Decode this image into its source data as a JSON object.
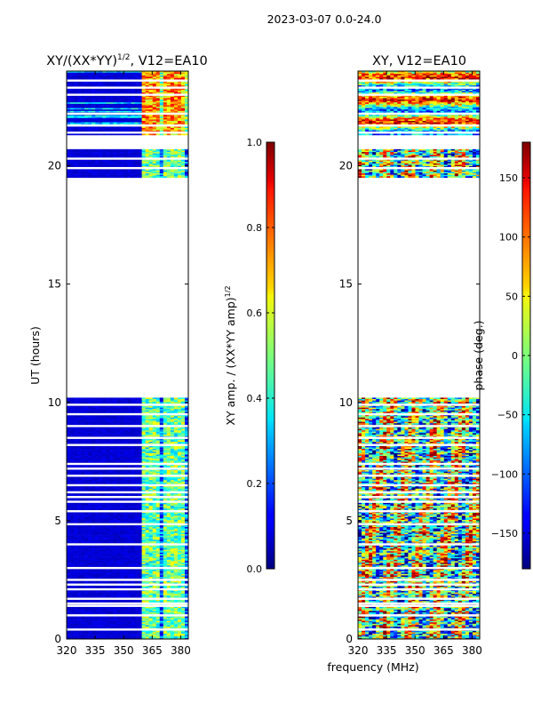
{
  "suptitle": "2023-03-07 0.0-24.0",
  "shared_xlabel": "frequency (MHz)",
  "chart_data": [
    {
      "type": "heatmap",
      "id": "amp",
      "title_main": "XY/(XX*YY)",
      "title_sup": "1/2",
      "title_rest": ", V12=EA10",
      "xlabel": "",
      "ylabel": "UT (hours)",
      "xlim": [
        320,
        384
      ],
      "ylim": [
        0,
        24
      ],
      "xticks": [
        320,
        335,
        350,
        365,
        380
      ],
      "yticks": [
        0,
        5,
        10,
        15,
        20
      ],
      "colormap": "jet",
      "value_range": [
        0,
        1
      ],
      "data_rows": [
        {
          "t0": 0.0,
          "t1": 10.2
        },
        {
          "t0": 19.5,
          "t1": 20.7
        },
        {
          "t0": 21.3,
          "t1": 24.0
        }
      ],
      "blank_lines_ut": [
        0.4,
        1.0,
        1.4,
        1.5,
        1.7,
        2.1,
        2.3,
        2.5,
        3.0,
        4.0,
        4.85,
        5.4,
        5.8,
        6.0,
        6.2,
        6.5,
        6.9,
        7.2,
        7.4,
        8.2,
        8.5,
        9.0,
        9.5,
        9.9,
        19.9,
        20.3,
        21.4,
        21.7,
        22.2,
        23.0,
        23.3,
        23.6
      ],
      "band_mhz": [
        360,
        384
      ],
      "colorbar": {
        "label_main": "XY amp. / (XX*YY amp)",
        "label_sup": "1/2",
        "range": [
          0,
          1
        ],
        "ticks": [
          "0.0",
          "0.2",
          "0.4",
          "0.6",
          "0.8",
          "1.0"
        ],
        "tick_values": [
          0,
          0.2,
          0.4,
          0.6,
          0.8,
          1.0
        ]
      }
    },
    {
      "type": "heatmap",
      "id": "phase",
      "title_main": "XY, V12=EA10",
      "title_sup": "",
      "title_rest": "",
      "xlabel": "frequency (MHz)",
      "ylabel": "",
      "xlim": [
        320,
        384
      ],
      "ylim": [
        0,
        24
      ],
      "xticks": [
        320,
        335,
        350,
        365,
        380
      ],
      "yticks": [
        0,
        5,
        10,
        15,
        20
      ],
      "colormap": "jet",
      "value_range": [
        -180,
        180
      ],
      "data_rows": [
        {
          "t0": 0.0,
          "t1": 10.2
        },
        {
          "t0": 19.5,
          "t1": 20.7
        },
        {
          "t0": 21.3,
          "t1": 24.0
        }
      ],
      "blank_lines_ut": [
        0.4,
        1.0,
        1.4,
        1.5,
        1.7,
        2.1,
        2.3,
        2.5,
        3.0,
        4.0,
        4.85,
        5.4,
        5.8,
        6.0,
        6.2,
        6.5,
        6.9,
        7.2,
        7.4,
        8.2,
        8.5,
        9.0,
        9.5,
        9.9,
        19.9,
        20.3,
        21.4,
        21.7,
        22.2,
        23.0,
        23.3,
        23.6
      ],
      "colorbar": {
        "label_main": "phase (deg.)",
        "label_sup": "",
        "range": [
          -180,
          180
        ],
        "ticks": [
          "−150",
          "−100",
          "−50",
          "0",
          "50",
          "100",
          "150"
        ],
        "tick_values": [
          -150,
          -100,
          -50,
          0,
          50,
          100,
          150
        ]
      }
    }
  ]
}
